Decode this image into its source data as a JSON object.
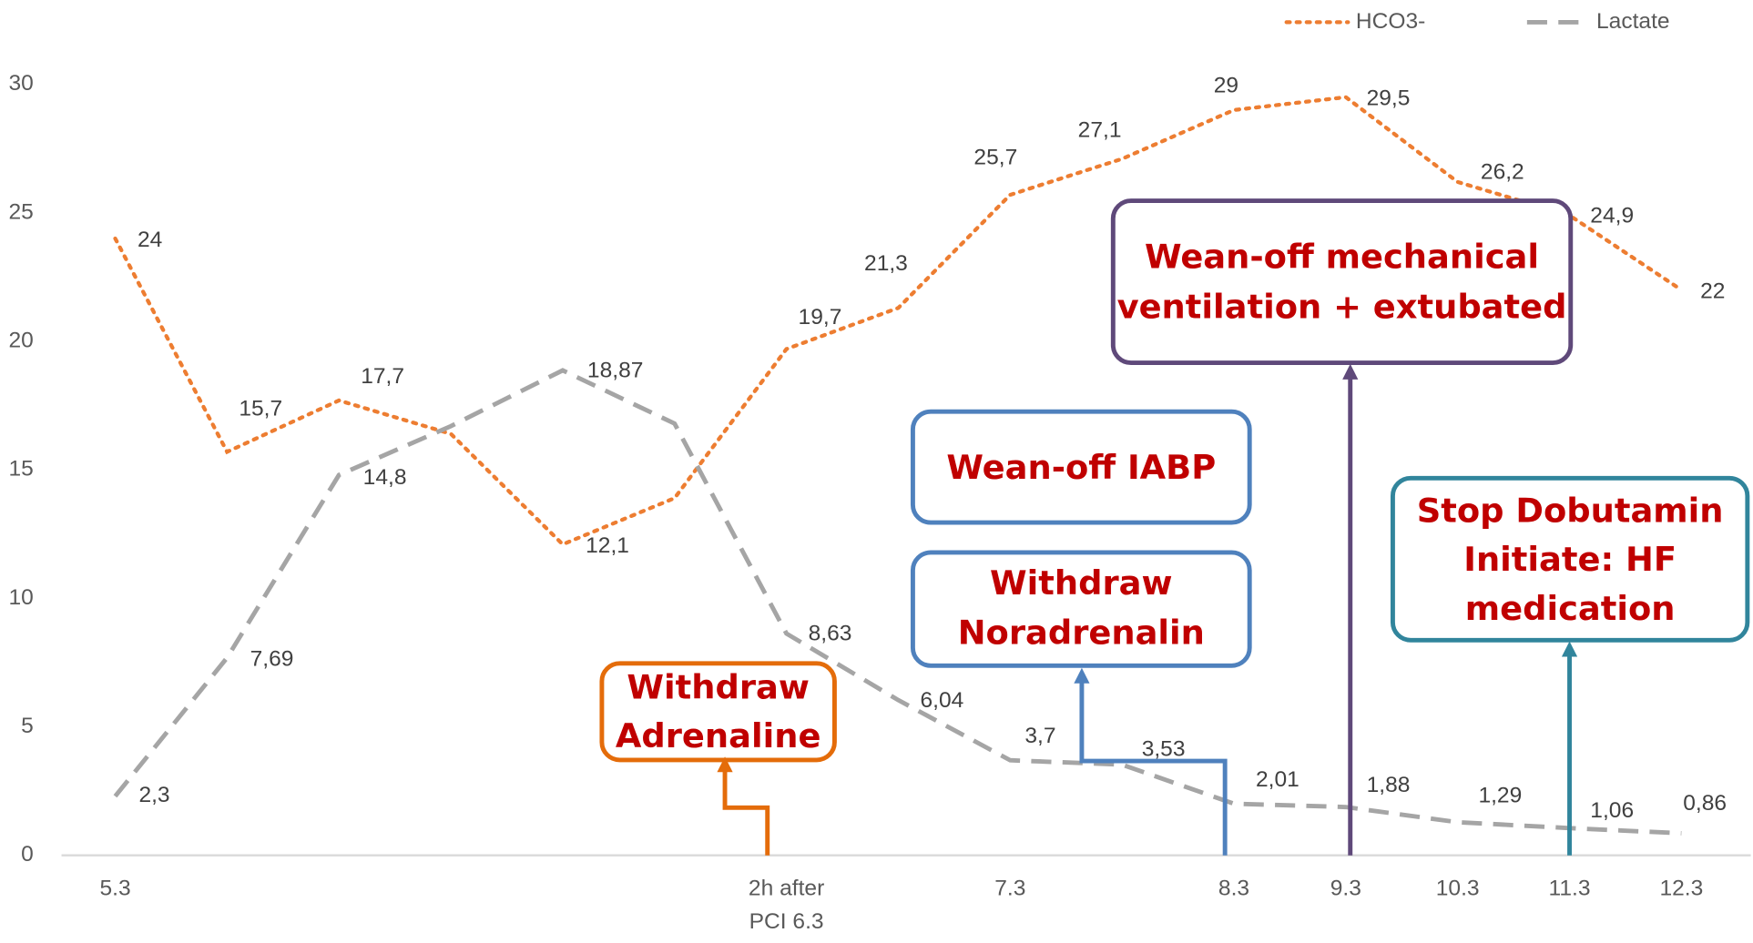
{
  "chart_data": {
    "type": "line",
    "categories": [
      "5.3",
      null,
      null,
      null,
      null,
      null,
      "2h after PCI 6.3",
      null,
      "7.3",
      null,
      "8.3",
      "9.3",
      "10.3",
      "11.3",
      "12.3"
    ],
    "series": [
      {
        "name": "HCO3-",
        "color": "#ed7d31",
        "dash": "dotted",
        "values": [
          24,
          15.7,
          17.7,
          16.4,
          12.1,
          13.9,
          19.7,
          21.3,
          25.7,
          27.1,
          29,
          29.5,
          26.2,
          24.9,
          22
        ],
        "value_labels": [
          "24",
          "15,7",
          "17,7",
          null,
          "12,1",
          null,
          "19,7",
          "21,3",
          "25,7",
          "27,1",
          "29",
          "29,5",
          "26,2",
          "24,9",
          "22"
        ]
      },
      {
        "name": "Lactate",
        "color": "#a5a5a5",
        "dash": "dashed",
        "values": [
          2.3,
          7.69,
          14.8,
          16.7,
          18.87,
          16.8,
          8.63,
          6.04,
          3.7,
          3.53,
          2.01,
          1.88,
          1.29,
          1.06,
          0.86
        ],
        "value_labels": [
          "2,3",
          "7,69",
          "14,8",
          null,
          "18,87",
          null,
          "8,63",
          "6,04",
          "3,7",
          "3,53",
          "2,01",
          "1,88",
          "1,29",
          "1,06",
          "0,86"
        ]
      }
    ],
    "ylim": [
      0,
      30
    ],
    "yticks": [
      0,
      5,
      10,
      15,
      20,
      25,
      30
    ],
    "grid": false,
    "legend": "top-right",
    "annotations": [
      {
        "lines": [
          "Withdraw",
          "Adrenaline"
        ],
        "color": "#e46c0a"
      },
      {
        "lines": [
          "Wean-off IABP"
        ],
        "color": "#4f81bd"
      },
      {
        "lines": [
          "Withdraw",
          "Noradrenalin"
        ],
        "color": "#4f81bd"
      },
      {
        "lines": [
          "Wean-off mechanical",
          "ventilation + extubated"
        ],
        "color": "#5f497a"
      },
      {
        "lines": [
          "Stop Dobutamin",
          "Initiate: HF",
          "medication"
        ],
        "color": "#31859c"
      }
    ]
  }
}
